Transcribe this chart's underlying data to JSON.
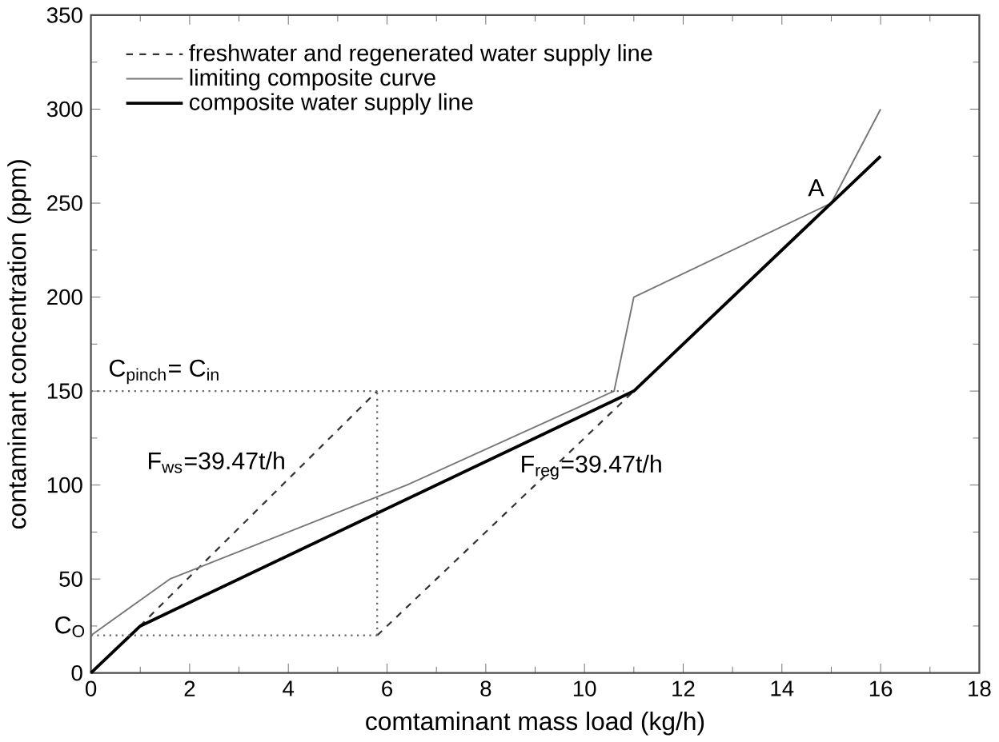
{
  "chart_data": {
    "type": "line",
    "xlabel": "comtaminant mass load (kg/h)",
    "ylabel": "contaminant concentration (ppm)",
    "xlim": [
      0,
      18
    ],
    "ylim": [
      0,
      350
    ],
    "xticks": [
      0,
      2,
      4,
      6,
      8,
      10,
      12,
      14,
      16,
      18
    ],
    "yticks": [
      0,
      50,
      100,
      150,
      200,
      250,
      300,
      350
    ],
    "legend": "top left",
    "grid": false,
    "marker": "none",
    "series": [
      {
        "name": "freshwater and regenerated water supply line",
        "color": "#333333",
        "line_style": "dashed",
        "x": [
          0.8,
          5.8,
          null,
          5.8,
          11
        ],
        "values": [
          20,
          150,
          null,
          20,
          150
        ]
      },
      {
        "name": "limiting composite curve",
        "color": "#777777",
        "line_style": "solid",
        "x": [
          0,
          1.6,
          6.4,
          10.6,
          11,
          15,
          16
        ],
        "values": [
          20,
          50,
          100,
          150,
          200,
          250,
          300
        ]
      },
      {
        "name": "composite water supply line",
        "color": "#000000",
        "line_style": "solid",
        "x": [
          0,
          1,
          11,
          15,
          16
        ],
        "values": [
          0,
          25,
          150,
          250,
          275
        ]
      },
      {
        "color": "#666666",
        "line_style": "dotted",
        "x": [
          0,
          10.8
        ],
        "values": [
          150,
          150
        ]
      },
      {
        "color": "#666666",
        "line_style": "dotted",
        "x": [
          5.8,
          5.8
        ],
        "values": [
          20,
          150
        ]
      },
      {
        "color": "#666666",
        "line_style": "dotted",
        "x": [
          0,
          5.8
        ],
        "values": [
          20,
          20
        ]
      }
    ],
    "annotations": [
      {
        "text": "C$_{pinch}$=  C$_{in}$",
        "x": 0.3,
        "y": 150
      },
      {
        "text": "C$_{O}$",
        "x": 0,
        "y": 20
      },
      "F$_{ws}$=39.47t/h",
      "F$_{reg}$=39.47t/h",
      {
        "text": "A",
        "x": 15,
        "y": 250
      }
    ]
  }
}
